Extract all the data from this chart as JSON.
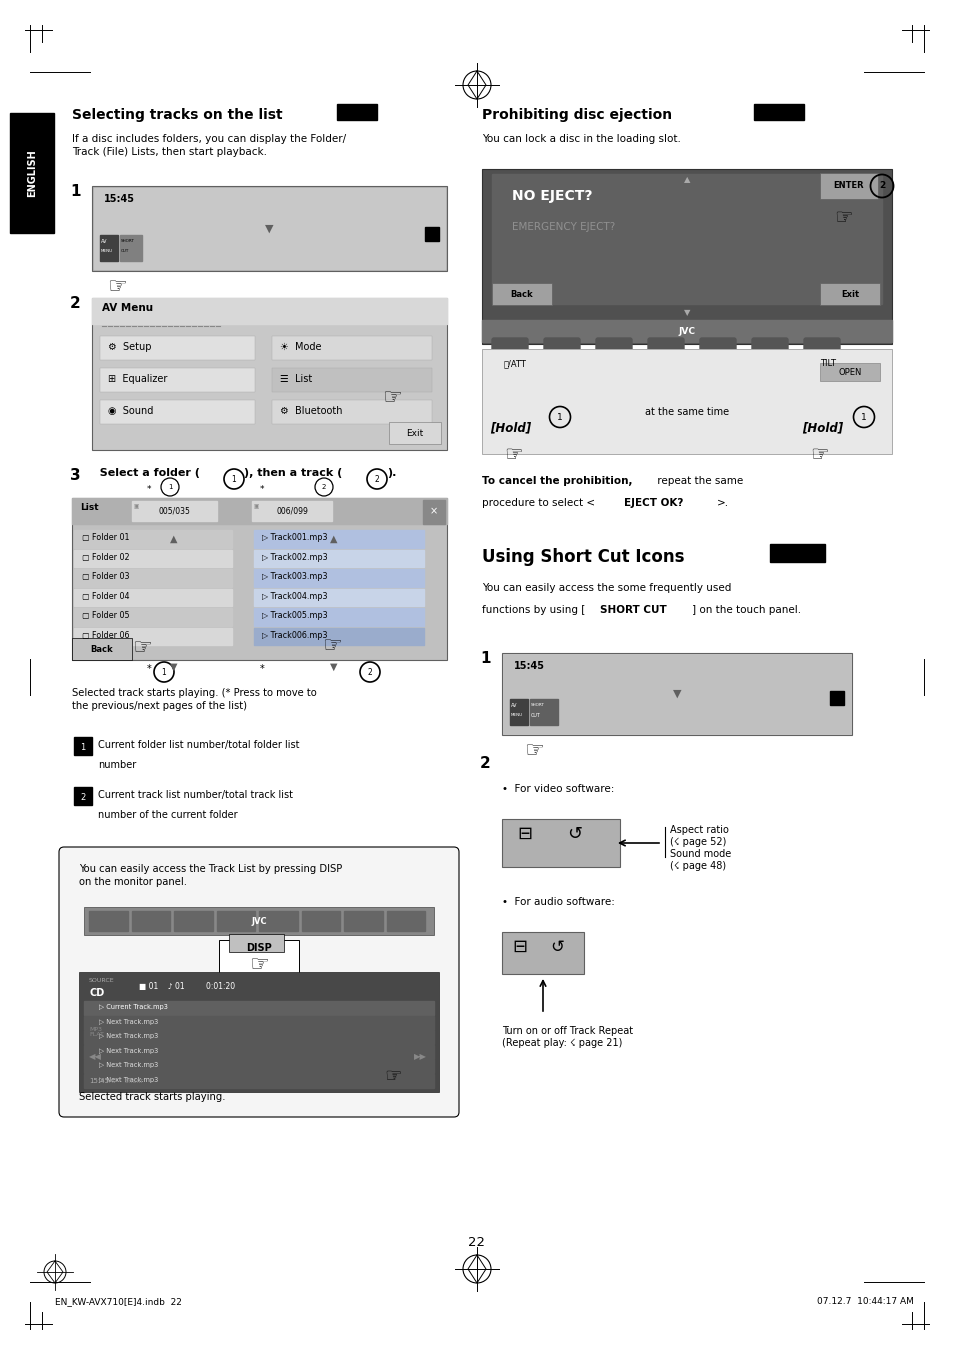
{
  "page_bg": "#ffffff",
  "page_width": 9.54,
  "page_height": 13.54,
  "dpi": 100,
  "left_section_title": "Selecting tracks on the list",
  "right_section_title": "Prohibiting disc ejection",
  "shortcut_section_title": "Using Short Cut Icons",
  "left_intro": "If a disc includes folders, you can display the Folder/\nTrack (File) Lists, then start playback.",
  "right_intro": "You can lock a disc in the loading slot.",
  "step3_note": "Selected track starts playing. (* Press to move to\nthe previous/next pages of the list)",
  "cancel_text_bold": "To cancel the prohibition,",
  "disp_box_text": "You can easily access the Track List by pressing DISP\non the monitor panel.",
  "selected_text": "Selected track starts playing.",
  "page_number": "22",
  "footer_left": "EN_KW-AVX710[E]4.indb  22",
  "footer_right": "07.12.7  10:44:17 AM",
  "english_label": "ENGLISH",
  "hold_left": "[Hold]",
  "hold_right": "[Hold]",
  "at_same_time": "at the same time",
  "aspect_ratio_text": "Aspect ratio\n(☇ page 52)",
  "sound_mode_text": "Sound mode\n(☇ page 48)",
  "track_repeat_text": "Turn on or off Track Repeat\n(Repeat play: ☇ page 21)"
}
